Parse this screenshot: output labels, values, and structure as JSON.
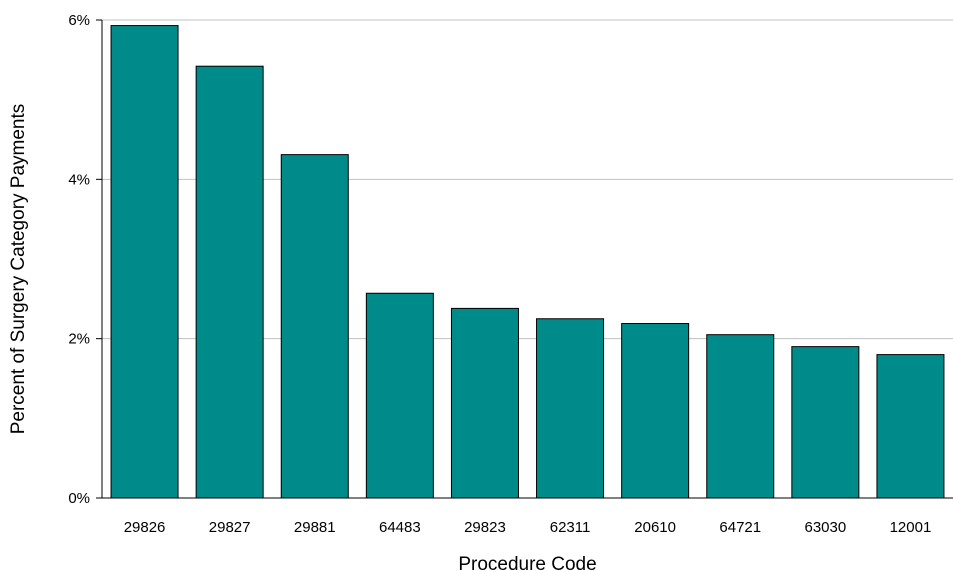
{
  "chart_data": {
    "type": "bar",
    "xlabel": "Procedure Code",
    "ylabel": "Percent of Surgery Category Payments",
    "categories": [
      "29826",
      "29827",
      "29881",
      "64483",
      "29823",
      "62311",
      "20610",
      "64721",
      "63030",
      "12001"
    ],
    "values": [
      5.93,
      5.42,
      4.31,
      2.57,
      2.38,
      2.25,
      2.19,
      2.05,
      1.9,
      1.8
    ],
    "ylim": [
      0,
      6
    ],
    "yticks": [
      0,
      2,
      4,
      6
    ],
    "ytick_labels": [
      "0%",
      "2%",
      "4%",
      "6%"
    ],
    "grid": true,
    "legend": "none",
    "colors": {
      "bar_fill": "#008B8B",
      "bar_stroke": "#000000",
      "grid": "#C0C0C0",
      "axis": "#000000"
    }
  }
}
